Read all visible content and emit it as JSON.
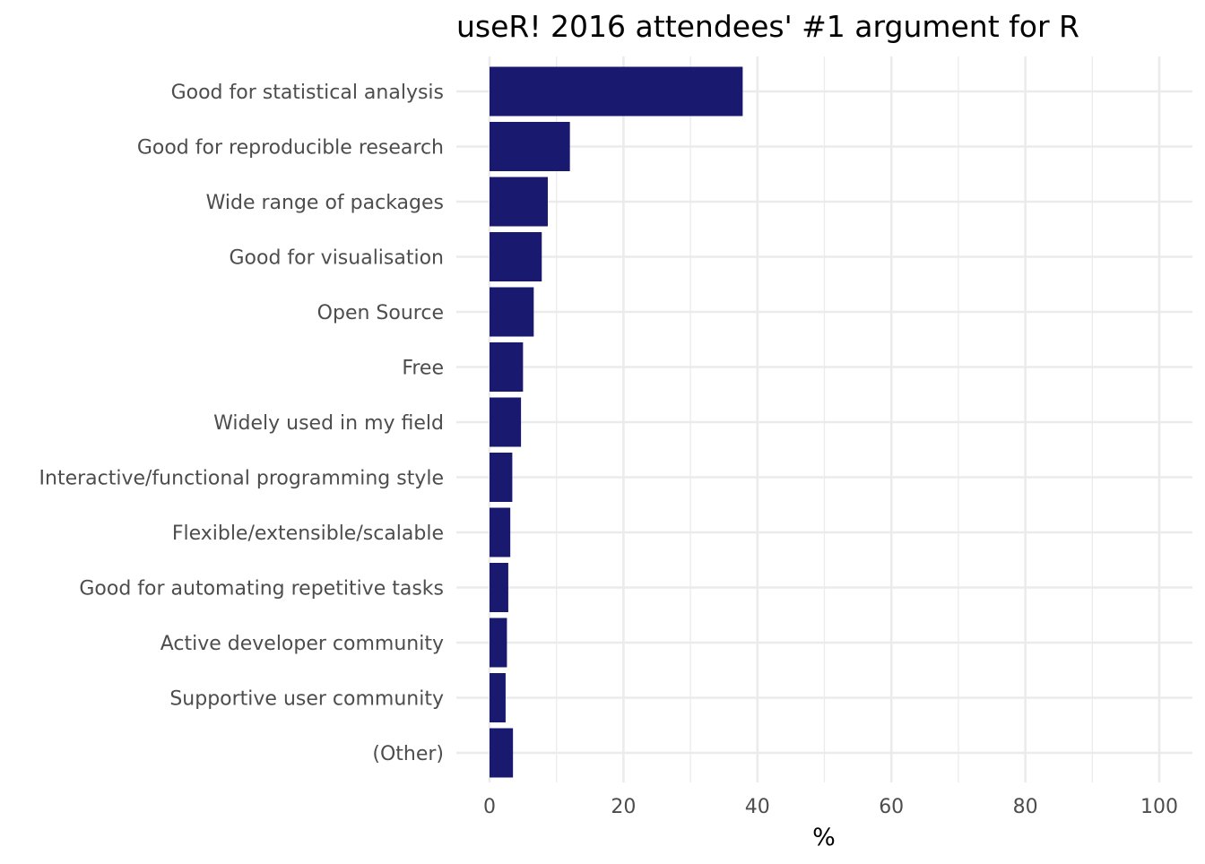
{
  "chart_data": {
    "type": "bar",
    "orientation": "horizontal",
    "title": "useR! 2016 attendees' #1 argument for R",
    "xlabel": "%",
    "ylabel": "",
    "xlim": [
      0,
      100
    ],
    "x_ticks": [
      "0",
      "20",
      "40",
      "60",
      "80",
      "100"
    ],
    "x_tick_values": [
      0,
      20,
      40,
      60,
      80,
      100
    ],
    "grid": true,
    "legend": "none",
    "bar_color": "#191970",
    "categories": [
      "Good for statistical analysis",
      "Good for reproducible research",
      "Wide range of packages",
      "Good for visualisation",
      "Open Source",
      "Free",
      "Widely used in my field",
      "Interactive/functional programming style",
      "Flexible/extensible/scalable",
      "Good for automating repetitive tasks",
      "Active developer community",
      "Supportive user community",
      "(Other)"
    ],
    "values": [
      37.8,
      12.0,
      8.7,
      7.8,
      6.6,
      5.0,
      4.7,
      3.4,
      3.1,
      2.8,
      2.6,
      2.4,
      3.5
    ]
  }
}
